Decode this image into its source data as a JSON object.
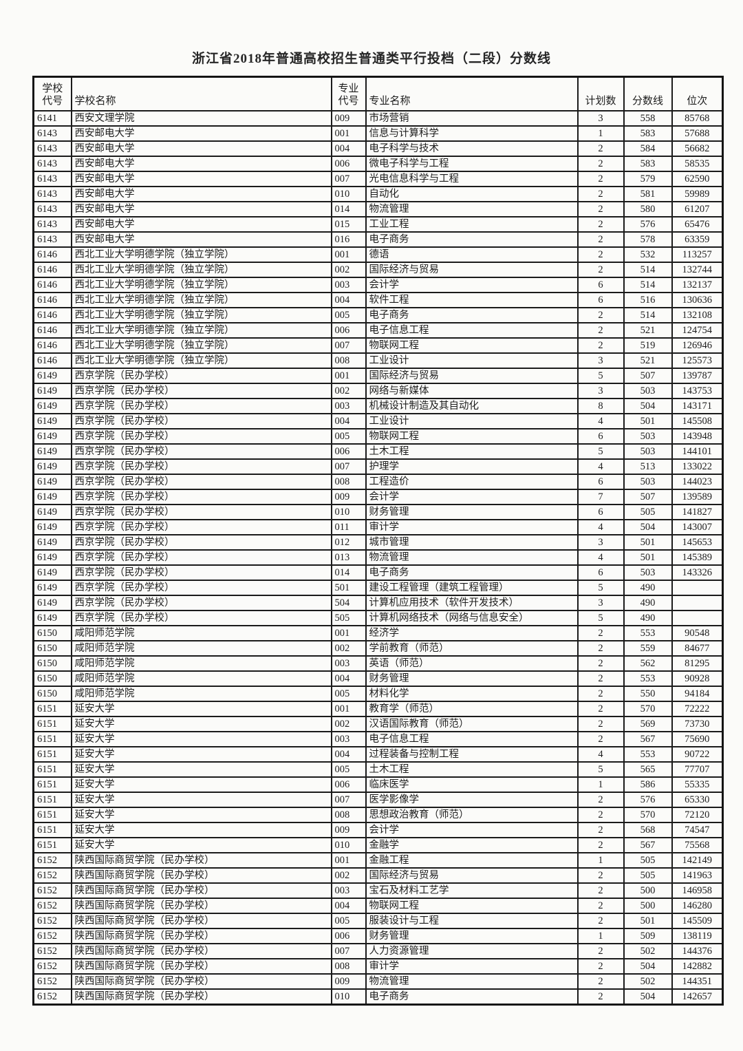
{
  "page": {
    "title": "浙江省2018年普通高校招生普通类平行投档（二段）分数线"
  },
  "table": {
    "headers": [
      "学校\n代号",
      "学校名称",
      "专业\n代号",
      "专业名称",
      "计划数",
      "分数线",
      "位次"
    ],
    "column_names": [
      "school-code",
      "school-name",
      "major-code",
      "major-name",
      "plan-count",
      "score-line",
      "rank"
    ],
    "rows": [
      [
        "6141",
        "西安文理学院",
        "009",
        "市场营销",
        "3",
        "558",
        "85768"
      ],
      [
        "6143",
        "西安邮电大学",
        "001",
        "信息与计算科学",
        "1",
        "583",
        "57688"
      ],
      [
        "6143",
        "西安邮电大学",
        "004",
        "电子科学与技术",
        "2",
        "584",
        "56682"
      ],
      [
        "6143",
        "西安邮电大学",
        "006",
        "微电子科学与工程",
        "2",
        "583",
        "58535"
      ],
      [
        "6143",
        "西安邮电大学",
        "007",
        "光电信息科学与工程",
        "2",
        "579",
        "62590"
      ],
      [
        "6143",
        "西安邮电大学",
        "010",
        "自动化",
        "2",
        "581",
        "59989"
      ],
      [
        "6143",
        "西安邮电大学",
        "014",
        "物流管理",
        "2",
        "580",
        "61207"
      ],
      [
        "6143",
        "西安邮电大学",
        "015",
        "工业工程",
        "2",
        "576",
        "65476"
      ],
      [
        "6143",
        "西安邮电大学",
        "016",
        "电子商务",
        "2",
        "578",
        "63359"
      ],
      [
        "6146",
        "西北工业大学明德学院（独立学院）",
        "001",
        "德语",
        "2",
        "532",
        "113257"
      ],
      [
        "6146",
        "西北工业大学明德学院（独立学院）",
        "002",
        "国际经济与贸易",
        "2",
        "514",
        "132744"
      ],
      [
        "6146",
        "西北工业大学明德学院（独立学院）",
        "003",
        "会计学",
        "6",
        "514",
        "132137"
      ],
      [
        "6146",
        "西北工业大学明德学院（独立学院）",
        "004",
        "软件工程",
        "6",
        "516",
        "130636"
      ],
      [
        "6146",
        "西北工业大学明德学院（独立学院）",
        "005",
        "电子商务",
        "2",
        "514",
        "132108"
      ],
      [
        "6146",
        "西北工业大学明德学院（独立学院）",
        "006",
        "电子信息工程",
        "2",
        "521",
        "124754"
      ],
      [
        "6146",
        "西北工业大学明德学院（独立学院）",
        "007",
        "物联网工程",
        "2",
        "519",
        "126946"
      ],
      [
        "6146",
        "西北工业大学明德学院（独立学院）",
        "008",
        "工业设计",
        "3",
        "521",
        "125573"
      ],
      [
        "6149",
        "西京学院（民办学校）",
        "001",
        "国际经济与贸易",
        "5",
        "507",
        "139787"
      ],
      [
        "6149",
        "西京学院（民办学校）",
        "002",
        "网络与新媒体",
        "3",
        "503",
        "143753"
      ],
      [
        "6149",
        "西京学院（民办学校）",
        "003",
        "机械设计制造及其自动化",
        "8",
        "504",
        "143171"
      ],
      [
        "6149",
        "西京学院（民办学校）",
        "004",
        "工业设计",
        "4",
        "501",
        "145508"
      ],
      [
        "6149",
        "西京学院（民办学校）",
        "005",
        "物联网工程",
        "6",
        "503",
        "143948"
      ],
      [
        "6149",
        "西京学院（民办学校）",
        "006",
        "土木工程",
        "5",
        "503",
        "144101"
      ],
      [
        "6149",
        "西京学院（民办学校）",
        "007",
        "护理学",
        "4",
        "513",
        "133022"
      ],
      [
        "6149",
        "西京学院（民办学校）",
        "008",
        "工程造价",
        "6",
        "503",
        "144023"
      ],
      [
        "6149",
        "西京学院（民办学校）",
        "009",
        "会计学",
        "7",
        "507",
        "139589"
      ],
      [
        "6149",
        "西京学院（民办学校）",
        "010",
        "财务管理",
        "6",
        "505",
        "141827"
      ],
      [
        "6149",
        "西京学院（民办学校）",
        "011",
        "审计学",
        "4",
        "504",
        "143007"
      ],
      [
        "6149",
        "西京学院（民办学校）",
        "012",
        "城市管理",
        "3",
        "501",
        "145653"
      ],
      [
        "6149",
        "西京学院（民办学校）",
        "013",
        "物流管理",
        "4",
        "501",
        "145389"
      ],
      [
        "6149",
        "西京学院（民办学校）",
        "014",
        "电子商务",
        "6",
        "503",
        "143326"
      ],
      [
        "6149",
        "西京学院（民办学校）",
        "501",
        "建设工程管理（建筑工程管理）",
        "5",
        "490",
        ""
      ],
      [
        "6149",
        "西京学院（民办学校）",
        "504",
        "计算机应用技术（软件开发技术）",
        "3",
        "490",
        ""
      ],
      [
        "6149",
        "西京学院（民办学校）",
        "505",
        "计算机网络技术（网络与信息安全）",
        "5",
        "490",
        ""
      ],
      [
        "6150",
        "咸阳师范学院",
        "001",
        "经济学",
        "2",
        "553",
        "90548"
      ],
      [
        "6150",
        "咸阳师范学院",
        "002",
        "学前教育（师范）",
        "2",
        "559",
        "84677"
      ],
      [
        "6150",
        "咸阳师范学院",
        "003",
        "英语（师范）",
        "2",
        "562",
        "81295"
      ],
      [
        "6150",
        "咸阳师范学院",
        "004",
        "财务管理",
        "2",
        "553",
        "90928"
      ],
      [
        "6150",
        "咸阳师范学院",
        "005",
        "材料化学",
        "2",
        "550",
        "94184"
      ],
      [
        "6151",
        "延安大学",
        "001",
        "教育学（师范）",
        "2",
        "570",
        "72222"
      ],
      [
        "6151",
        "延安大学",
        "002",
        "汉语国际教育（师范）",
        "2",
        "569",
        "73730"
      ],
      [
        "6151",
        "延安大学",
        "003",
        "电子信息工程",
        "2",
        "567",
        "75690"
      ],
      [
        "6151",
        "延安大学",
        "004",
        "过程装备与控制工程",
        "4",
        "553",
        "90722"
      ],
      [
        "6151",
        "延安大学",
        "005",
        "土木工程",
        "5",
        "565",
        "77707"
      ],
      [
        "6151",
        "延安大学",
        "006",
        "临床医学",
        "1",
        "586",
        "55335"
      ],
      [
        "6151",
        "延安大学",
        "007",
        "医学影像学",
        "2",
        "576",
        "65330"
      ],
      [
        "6151",
        "延安大学",
        "008",
        "思想政治教育（师范）",
        "2",
        "570",
        "72120"
      ],
      [
        "6151",
        "延安大学",
        "009",
        "会计学",
        "2",
        "568",
        "74547"
      ],
      [
        "6151",
        "延安大学",
        "010",
        "金融学",
        "2",
        "567",
        "75568"
      ],
      [
        "6152",
        "陕西国际商贸学院（民办学校）",
        "001",
        "金融工程",
        "1",
        "505",
        "142149"
      ],
      [
        "6152",
        "陕西国际商贸学院（民办学校）",
        "002",
        "国际经济与贸易",
        "2",
        "505",
        "141963"
      ],
      [
        "6152",
        "陕西国际商贸学院（民办学校）",
        "003",
        "宝石及材料工艺学",
        "2",
        "500",
        "146958"
      ],
      [
        "6152",
        "陕西国际商贸学院（民办学校）",
        "004",
        "物联网工程",
        "2",
        "500",
        "146280"
      ],
      [
        "6152",
        "陕西国际商贸学院（民办学校）",
        "005",
        "服装设计与工程",
        "2",
        "501",
        "145509"
      ],
      [
        "6152",
        "陕西国际商贸学院（民办学校）",
        "006",
        "财务管理",
        "1",
        "509",
        "138119"
      ],
      [
        "6152",
        "陕西国际商贸学院（民办学校）",
        "007",
        "人力资源管理",
        "2",
        "502",
        "144376"
      ],
      [
        "6152",
        "陕西国际商贸学院（民办学校）",
        "008",
        "审计学",
        "2",
        "504",
        "142882"
      ],
      [
        "6152",
        "陕西国际商贸学院（民办学校）",
        "009",
        "物流管理",
        "2",
        "502",
        "144351"
      ],
      [
        "6152",
        "陕西国际商贸学院（民办学校）",
        "010",
        "电子商务",
        "2",
        "504",
        "142657"
      ]
    ]
  }
}
